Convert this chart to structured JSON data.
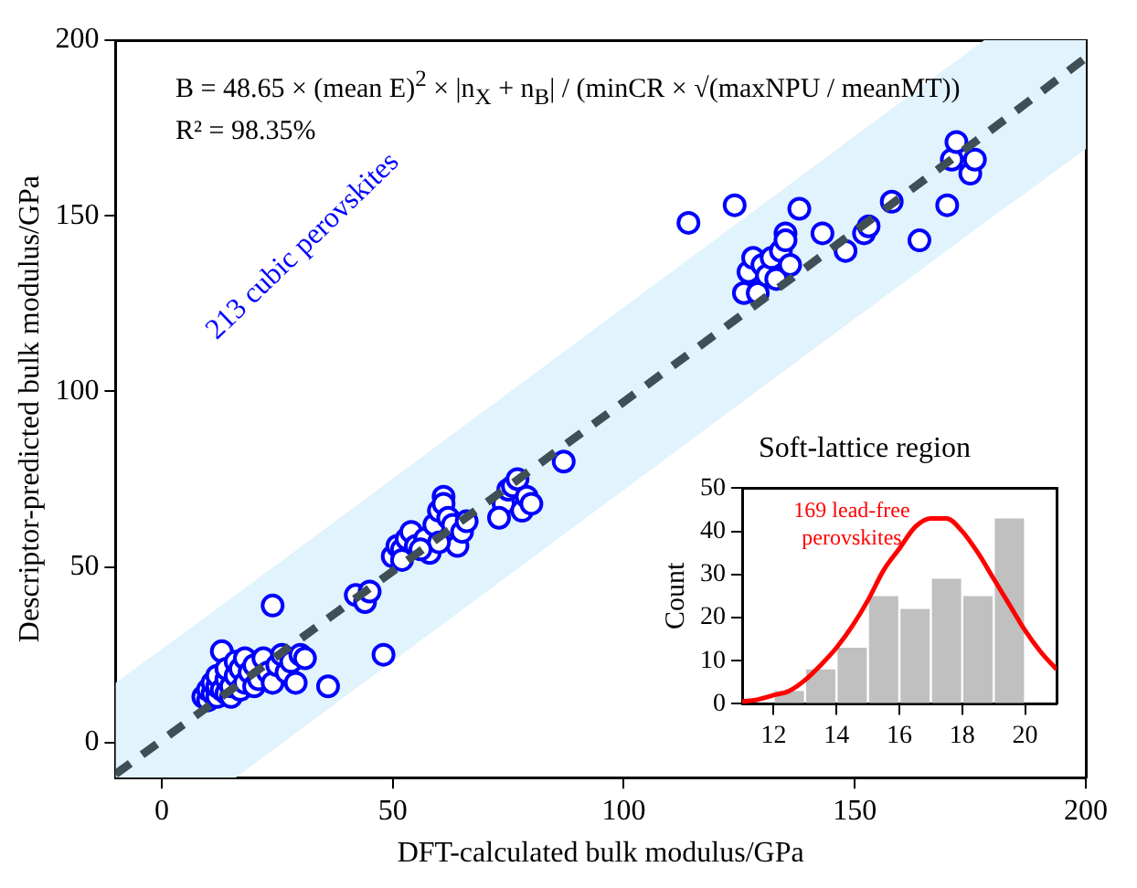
{
  "chart_data": [
    {
      "type": "scatter",
      "xlabel": "DFT-calculated bulk modulus/GPa",
      "ylabel": "Descriptor-predicted bulk modulus/GPa",
      "xlim": [
        -10,
        200
      ],
      "ylim": [
        -10,
        200
      ],
      "xticks": [
        0,
        50,
        100,
        150,
        200
      ],
      "yticks": [
        0,
        50,
        100,
        150,
        200
      ],
      "grid": false,
      "legend": false,
      "marker": "circle",
      "annotations": [
        "B = 48.65 × (mean E)$^{2}$ × |n$_{X}$ + n$_{B}$| / (minCR × √(maxNPU / meanMT))",
        "R² = 98.35%",
        "213 cubic perovskites"
      ],
      "series": [
        {
          "type": "scatter",
          "color": "#0000ff",
          "x": [
            9,
            10,
            10,
            11,
            11,
            12,
            12,
            12,
            13,
            13,
            14,
            14,
            14,
            15,
            15,
            16,
            16,
            17,
            17,
            18,
            18,
            19,
            20,
            20,
            21,
            22,
            23,
            24,
            25,
            26,
            27,
            28,
            29,
            30,
            31,
            24,
            36,
            48,
            42,
            44,
            45,
            50,
            51,
            52,
            53,
            54,
            52,
            55,
            57,
            58,
            59,
            60,
            61,
            61,
            62,
            63,
            64,
            65,
            66,
            60,
            56,
            74,
            75,
            76,
            77,
            78,
            79,
            80,
            73,
            87,
            114,
            124,
            126,
            127,
            128,
            129,
            130,
            131,
            132,
            133,
            134,
            135,
            136,
            138,
            143,
            148,
            152,
            153,
            158,
            164,
            170,
            171,
            175,
            176,
            172,
            135
          ],
          "values": [
            13,
            12,
            15,
            14,
            17,
            13,
            16,
            19,
            15,
            26,
            14,
            18,
            21,
            13,
            16,
            19,
            23,
            15,
            21,
            17,
            24,
            20,
            16,
            22,
            18,
            24,
            20,
            17,
            22,
            25,
            20,
            23,
            17,
            25,
            24,
            39,
            16,
            25,
            42,
            40,
            43,
            53,
            56,
            55,
            58,
            60,
            52,
            56,
            58,
            54,
            62,
            66,
            70,
            68,
            64,
            62,
            56,
            60,
            63,
            57,
            55,
            68,
            72,
            73,
            75,
            66,
            70,
            68,
            64,
            80,
            148,
            153,
            128,
            134,
            138,
            128,
            136,
            133,
            138,
            132,
            140,
            145,
            136,
            152,
            145,
            140,
            145,
            147,
            154,
            143,
            153,
            166,
            162,
            166,
            171,
            143
          ]
        },
        {
          "type": "line",
          "color": "#3f4f55",
          "line_style": "dashed",
          "marker": "none",
          "x": [
            -10,
            16,
            178,
            200
          ],
          "values": [
            -9,
            16,
            173,
            195
          ],
          "lower": [
            -10,
            -10,
            148,
            169
          ],
          "upper": [
            17,
            42,
            200,
            200
          ]
        }
      ]
    },
    {
      "type": "histogram",
      "title": "Soft-lattice region",
      "ylabel": "Count",
      "xlim": [
        11,
        21
      ],
      "ylim": [
        0,
        50
      ],
      "xticks": [
        12,
        14,
        16,
        18,
        20
      ],
      "yticks": [
        0,
        10,
        20,
        30,
        40,
        50
      ],
      "grid": false,
      "legend": false,
      "bins": [
        12,
        13,
        14,
        15,
        16,
        17,
        18,
        19,
        20
      ],
      "annotations": [
        "169 lead-free perovskites"
      ],
      "series": [
        {
          "type": "histogram",
          "color": "#c0c0c0",
          "values": [
            3,
            8,
            13,
            25,
            22,
            29,
            25,
            43
          ]
        },
        {
          "type": "line",
          "color": "#ff0000",
          "marker": "none",
          "x": [
            11,
            11.5,
            12,
            12.5,
            13,
            13.5,
            14,
            14.5,
            15,
            15.5,
            16,
            16.5,
            17,
            17.5,
            18,
            18.5,
            19,
            19.5,
            20,
            20.5,
            21
          ],
          "values": [
            0.5,
            1,
            2,
            3,
            5.5,
            9,
            13,
            18,
            24,
            31,
            36,
            41,
            43,
            43,
            40,
            35,
            29,
            23,
            17,
            12,
            8
          ]
        }
      ]
    }
  ]
}
